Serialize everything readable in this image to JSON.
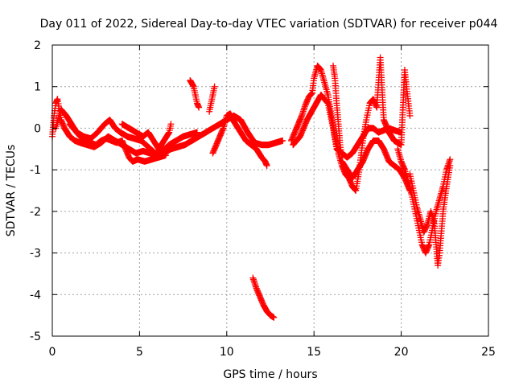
{
  "chart_data": {
    "type": "scatter",
    "title": "Day 011 of 2022, Sidereal Day-to-day VTEC variation (SDTVAR) for receiver p044",
    "xlabel": "GPS time / hours",
    "ylabel": "SDTVAR / TECUs",
    "xlim": [
      0,
      25
    ],
    "ylim": [
      -5,
      2
    ],
    "xticks": [
      "0",
      "5",
      "10",
      "15",
      "20",
      "25"
    ],
    "yticks": [
      "-5",
      "-4",
      "-3",
      "-2",
      "-1",
      "0",
      "1",
      "2"
    ],
    "grid": true,
    "marker": "+",
    "color": "#ff0000",
    "series": [
      {
        "name": "track-a",
        "points": [
          [
            0.0,
            -0.2
          ],
          [
            0.1,
            0.3
          ],
          [
            0.2,
            0.6
          ],
          [
            0.3,
            0.7
          ],
          [
            0.5,
            0.2
          ],
          [
            0.7,
            0.0
          ],
          [
            1.0,
            -0.2
          ],
          [
            1.3,
            -0.3
          ],
          [
            1.6,
            -0.35
          ],
          [
            2.0,
            -0.4
          ],
          [
            2.4,
            -0.45
          ],
          [
            2.8,
            -0.35
          ],
          [
            3.2,
            -0.2
          ],
          [
            3.6,
            -0.3
          ],
          [
            4.0,
            -0.4
          ],
          [
            4.4,
            -0.5
          ],
          [
            4.8,
            -0.6
          ],
          [
            5.2,
            -0.55
          ],
          [
            5.6,
            -0.6
          ],
          [
            6.0,
            -0.65
          ],
          [
            6.4,
            -0.6
          ],
          [
            6.8,
            -0.5
          ],
          [
            7.2,
            -0.45
          ],
          [
            7.6,
            -0.4
          ],
          [
            8.0,
            -0.3
          ],
          [
            8.4,
            -0.2
          ],
          [
            8.8,
            -0.1
          ],
          [
            9.2,
            0.0
          ],
          [
            9.6,
            0.1
          ],
          [
            10.0,
            0.2
          ],
          [
            10.4,
            0.3
          ],
          [
            10.8,
            0.2
          ],
          [
            11.2,
            -0.1
          ],
          [
            11.6,
            -0.35
          ],
          [
            12.0,
            -0.4
          ],
          [
            12.4,
            -0.4
          ],
          [
            12.8,
            -0.35
          ],
          [
            13.2,
            -0.3
          ]
        ]
      },
      {
        "name": "track-b",
        "points": [
          [
            0.2,
            0.0
          ],
          [
            0.5,
            0.45
          ],
          [
            0.8,
            0.3
          ],
          [
            1.1,
            0.1
          ],
          [
            1.4,
            -0.1
          ],
          [
            1.8,
            -0.2
          ],
          [
            2.2,
            -0.25
          ],
          [
            2.6,
            -0.1
          ],
          [
            3.0,
            0.1
          ],
          [
            3.3,
            0.2
          ],
          [
            3.6,
            0.0
          ],
          [
            3.9,
            -0.1
          ],
          [
            4.3,
            -0.2
          ],
          [
            4.7,
            -0.25
          ],
          [
            5.1,
            -0.3
          ],
          [
            5.5,
            -0.45
          ],
          [
            5.9,
            -0.6
          ],
          [
            6.3,
            -0.55
          ],
          [
            6.7,
            -0.4
          ],
          [
            7.1,
            -0.3
          ],
          [
            7.5,
            -0.2
          ],
          [
            7.9,
            -0.15
          ],
          [
            8.3,
            -0.1
          ]
        ]
      },
      {
        "name": "track-c",
        "points": [
          [
            1.0,
            0.1
          ],
          [
            1.3,
            -0.05
          ],
          [
            1.6,
            -0.2
          ],
          [
            1.9,
            -0.3
          ],
          [
            2.2,
            -0.35
          ],
          [
            2.5,
            -0.4
          ],
          [
            2.8,
            -0.3
          ],
          [
            3.1,
            -0.25
          ],
          [
            3.4,
            -0.3
          ],
          [
            3.7,
            -0.35
          ],
          [
            4.0,
            -0.3
          ],
          [
            4.2,
            -0.5
          ],
          [
            4.4,
            -0.7
          ],
          [
            4.6,
            -0.8
          ],
          [
            4.9,
            -0.75
          ],
          [
            5.3,
            -0.8
          ],
          [
            5.7,
            -0.75
          ],
          [
            6.1,
            -0.7
          ],
          [
            6.5,
            -0.65
          ]
        ]
      },
      {
        "name": "track-d",
        "points": [
          [
            4.0,
            0.1
          ],
          [
            4.4,
            0.0
          ],
          [
            4.8,
            -0.1
          ],
          [
            5.2,
            -0.2
          ],
          [
            5.5,
            -0.1
          ],
          [
            5.8,
            -0.3
          ],
          [
            6.1,
            -0.5
          ],
          [
            6.4,
            -0.3
          ],
          [
            6.7,
            -0.1
          ],
          [
            6.8,
            0.1
          ]
        ]
      },
      {
        "name": "track-e",
        "points": [
          [
            7.9,
            1.15
          ],
          [
            8.1,
            1.0
          ],
          [
            8.2,
            0.8
          ],
          [
            8.3,
            0.6
          ],
          [
            8.4,
            0.5
          ]
        ]
      },
      {
        "name": "track-f",
        "points": [
          [
            9.0,
            0.4
          ],
          [
            9.1,
            0.6
          ],
          [
            9.2,
            0.8
          ],
          [
            9.3,
            1.0
          ]
        ]
      },
      {
        "name": "track-g",
        "points": [
          [
            9.2,
            -0.6
          ],
          [
            9.4,
            -0.4
          ],
          [
            9.6,
            -0.2
          ],
          [
            9.8,
            0.0
          ],
          [
            10.0,
            0.3
          ],
          [
            10.2,
            0.35
          ],
          [
            10.4,
            0.2
          ]
        ]
      },
      {
        "name": "track-h",
        "points": [
          [
            10.2,
            0.3
          ],
          [
            10.5,
            0.1
          ],
          [
            10.8,
            -0.1
          ],
          [
            11.1,
            -0.3
          ],
          [
            11.4,
            -0.4
          ],
          [
            11.7,
            -0.5
          ],
          [
            12.0,
            -0.7
          ],
          [
            12.2,
            -0.8
          ],
          [
            12.3,
            -0.9
          ]
        ]
      },
      {
        "name": "track-i",
        "points": [
          [
            11.5,
            -3.6
          ],
          [
            11.7,
            -3.85
          ],
          [
            11.9,
            -4.05
          ],
          [
            12.1,
            -4.25
          ],
          [
            12.3,
            -4.4
          ],
          [
            12.5,
            -4.5
          ],
          [
            12.7,
            -4.55
          ]
        ]
      },
      {
        "name": "track-j",
        "points": [
          [
            13.7,
            -0.3
          ],
          [
            13.9,
            -0.1
          ],
          [
            14.1,
            0.1
          ],
          [
            14.3,
            0.3
          ],
          [
            14.5,
            0.55
          ],
          [
            14.7,
            0.75
          ],
          [
            14.9,
            0.85
          ],
          [
            15.0,
            1.2
          ],
          [
            15.2,
            1.5
          ],
          [
            15.4,
            1.4
          ],
          [
            15.6,
            1.1
          ],
          [
            15.8,
            0.8
          ],
          [
            16.0,
            0.3
          ],
          [
            16.2,
            -0.2
          ],
          [
            16.4,
            -0.6
          ],
          [
            16.6,
            -0.9
          ],
          [
            16.8,
            -1.1
          ],
          [
            17.0,
            -1.2
          ],
          [
            17.2,
            -1.4
          ],
          [
            17.4,
            -1.5
          ],
          [
            17.6,
            -1.0
          ],
          [
            17.8,
            -0.3
          ],
          [
            18.0,
            0.2
          ],
          [
            18.2,
            0.6
          ],
          [
            18.4,
            0.7
          ],
          [
            18.6,
            0.5
          ],
          [
            18.8,
            1.7
          ],
          [
            19.0,
            0.2
          ],
          [
            19.3,
            -0.1
          ],
          [
            19.6,
            -0.3
          ],
          [
            20.0,
            -0.4
          ],
          [
            20.2,
            1.4
          ],
          [
            20.3,
            1.0
          ],
          [
            20.5,
            0.3
          ]
        ]
      },
      {
        "name": "track-k",
        "points": [
          [
            13.8,
            -0.4
          ],
          [
            14.2,
            -0.2
          ],
          [
            14.6,
            0.2
          ],
          [
            15.0,
            0.5
          ],
          [
            15.4,
            0.8
          ],
          [
            15.8,
            0.6
          ],
          [
            16.1,
            0.0
          ],
          [
            16.3,
            -0.5
          ],
          [
            16.6,
            -0.6
          ],
          [
            16.9,
            -0.7
          ],
          [
            17.2,
            -0.6
          ],
          [
            17.5,
            -0.4
          ],
          [
            17.8,
            -0.2
          ],
          [
            18.1,
            0.0
          ],
          [
            18.4,
            0.0
          ],
          [
            18.7,
            -0.1
          ],
          [
            19.0,
            -0.05
          ],
          [
            19.3,
            0.0
          ],
          [
            19.6,
            -0.05
          ],
          [
            20.0,
            -0.1
          ]
        ]
      },
      {
        "name": "track-l",
        "points": [
          [
            16.1,
            1.5
          ],
          [
            16.2,
            1.2
          ],
          [
            16.3,
            0.6
          ],
          [
            16.4,
            0.1
          ],
          [
            16.5,
            -0.4
          ],
          [
            16.6,
            -0.7
          ]
        ]
      },
      {
        "name": "track-m",
        "points": [
          [
            19.8,
            -0.5
          ],
          [
            20.0,
            -0.8
          ],
          [
            20.2,
            -1.0
          ],
          [
            20.4,
            -1.3
          ],
          [
            20.6,
            -1.6
          ],
          [
            20.8,
            -2.0
          ],
          [
            21.0,
            -2.4
          ],
          [
            21.2,
            -2.8
          ],
          [
            21.4,
            -3.0
          ],
          [
            21.6,
            -2.8
          ],
          [
            21.8,
            -2.4
          ],
          [
            22.0,
            -2.0
          ],
          [
            22.2,
            -1.7
          ],
          [
            22.4,
            -1.4
          ],
          [
            22.6,
            -1.0
          ],
          [
            22.8,
            -0.75
          ]
        ]
      },
      {
        "name": "track-n",
        "points": [
          [
            20.5,
            -1.1
          ],
          [
            20.7,
            -1.5
          ],
          [
            20.9,
            -1.9
          ],
          [
            21.1,
            -2.2
          ],
          [
            21.3,
            -2.5
          ],
          [
            21.5,
            -2.3
          ],
          [
            21.7,
            -2.0
          ],
          [
            21.9,
            -2.3
          ],
          [
            22.0,
            -2.8
          ],
          [
            22.1,
            -3.3
          ],
          [
            22.2,
            -3.0
          ],
          [
            22.4,
            -2.0
          ],
          [
            22.6,
            -1.4
          ],
          [
            22.8,
            -0.9
          ]
        ]
      },
      {
        "name": "track-o",
        "points": [
          [
            16.6,
            -0.8
          ],
          [
            16.9,
            -1.0
          ],
          [
            17.2,
            -1.2
          ],
          [
            17.5,
            -1.0
          ],
          [
            17.8,
            -0.8
          ],
          [
            18.1,
            -0.5
          ],
          [
            18.4,
            -0.3
          ],
          [
            18.7,
            -0.3
          ],
          [
            19.0,
            -0.5
          ],
          [
            19.3,
            -0.8
          ],
          [
            19.6,
            -0.9
          ],
          [
            19.9,
            -1.0
          ],
          [
            20.2,
            -1.2
          ],
          [
            20.5,
            -1.5
          ]
        ]
      }
    ]
  }
}
